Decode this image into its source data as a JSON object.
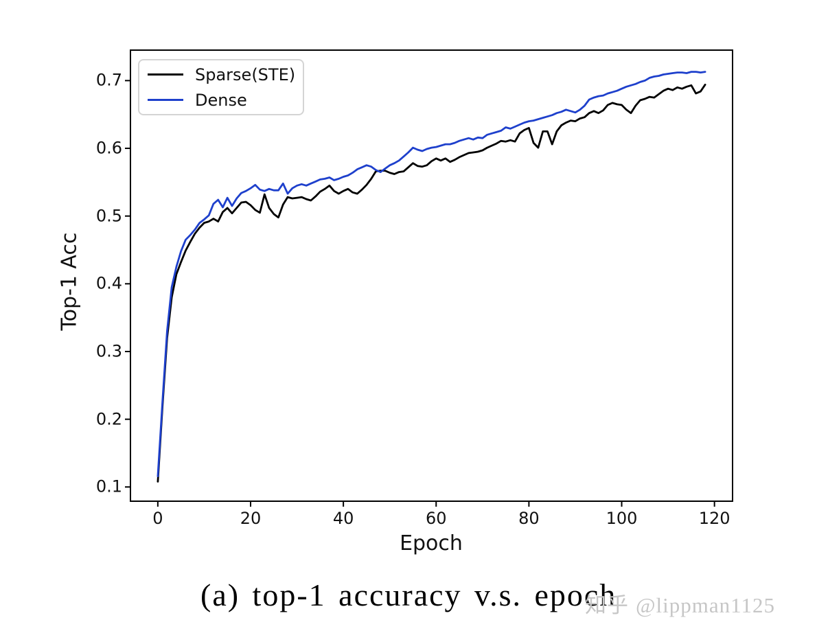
{
  "caption": "(a) top-1 accuracy v.s. epoch",
  "watermark": {
    "logo": "知乎",
    "handle": "@lippman1125",
    "color": "#c6c6c6"
  },
  "chart_data": {
    "type": "line",
    "title": "",
    "xlabel": "Epoch",
    "ylabel": "Top-1 Acc",
    "xlim": [
      -5.9,
      123.9
    ],
    "ylim": [
      0.079,
      0.745
    ],
    "x_ticks": [
      0,
      20,
      40,
      60,
      80,
      100,
      120
    ],
    "y_ticks": [
      0.1,
      0.2,
      0.3,
      0.4,
      0.5,
      0.6,
      0.7
    ],
    "grid": false,
    "legend_position": "upper left",
    "x_step": 1,
    "series": [
      {
        "name": "Sparse(STE)",
        "color": "#000000",
        "x_start": 0,
        "values": [
          0.108,
          0.218,
          0.32,
          0.38,
          0.414,
          0.432,
          0.449,
          0.462,
          0.474,
          0.483,
          0.49,
          0.492,
          0.496,
          0.492,
          0.506,
          0.512,
          0.504,
          0.512,
          0.52,
          0.521,
          0.516,
          0.509,
          0.505,
          0.532,
          0.512,
          0.503,
          0.498,
          0.517,
          0.528,
          0.526,
          0.527,
          0.528,
          0.525,
          0.523,
          0.529,
          0.536,
          0.54,
          0.545,
          0.537,
          0.533,
          0.537,
          0.54,
          0.535,
          0.533,
          0.539,
          0.546,
          0.555,
          0.566,
          0.567,
          0.567,
          0.564,
          0.562,
          0.565,
          0.566,
          0.572,
          0.578,
          0.574,
          0.573,
          0.575,
          0.581,
          0.585,
          0.582,
          0.585,
          0.58,
          0.583,
          0.587,
          0.59,
          0.593,
          0.594,
          0.595,
          0.597,
          0.601,
          0.604,
          0.607,
          0.611,
          0.61,
          0.612,
          0.61,
          0.622,
          0.627,
          0.63,
          0.608,
          0.601,
          0.625,
          0.625,
          0.606,
          0.625,
          0.634,
          0.638,
          0.641,
          0.64,
          0.644,
          0.646,
          0.652,
          0.655,
          0.652,
          0.656,
          0.664,
          0.667,
          0.665,
          0.664,
          0.657,
          0.652,
          0.663,
          0.671,
          0.673,
          0.676,
          0.675,
          0.68,
          0.685,
          0.688,
          0.686,
          0.69,
          0.688,
          0.691,
          0.693,
          0.681,
          0.684,
          0.694
        ]
      },
      {
        "name": "Dense",
        "color": "#1e40cc",
        "x_start": 0,
        "values": [
          0.116,
          0.225,
          0.33,
          0.395,
          0.425,
          0.448,
          0.465,
          0.472,
          0.48,
          0.49,
          0.495,
          0.501,
          0.518,
          0.524,
          0.513,
          0.527,
          0.515,
          0.526,
          0.534,
          0.537,
          0.541,
          0.546,
          0.539,
          0.537,
          0.54,
          0.538,
          0.538,
          0.548,
          0.533,
          0.541,
          0.545,
          0.547,
          0.545,
          0.548,
          0.551,
          0.554,
          0.555,
          0.557,
          0.553,
          0.555,
          0.558,
          0.56,
          0.564,
          0.569,
          0.572,
          0.575,
          0.573,
          0.568,
          0.565,
          0.57,
          0.575,
          0.578,
          0.582,
          0.588,
          0.594,
          0.601,
          0.598,
          0.596,
          0.599,
          0.601,
          0.602,
          0.604,
          0.606,
          0.606,
          0.608,
          0.611,
          0.613,
          0.615,
          0.613,
          0.616,
          0.615,
          0.62,
          0.622,
          0.624,
          0.626,
          0.631,
          0.629,
          0.632,
          0.635,
          0.638,
          0.64,
          0.641,
          0.643,
          0.645,
          0.647,
          0.649,
          0.652,
          0.654,
          0.657,
          0.655,
          0.653,
          0.657,
          0.663,
          0.672,
          0.675,
          0.677,
          0.678,
          0.681,
          0.683,
          0.685,
          0.688,
          0.691,
          0.693,
          0.695,
          0.698,
          0.7,
          0.704,
          0.706,
          0.707,
          0.709,
          0.71,
          0.711,
          0.712,
          0.712,
          0.711,
          0.713,
          0.713,
          0.712,
          0.713
        ]
      }
    ]
  }
}
